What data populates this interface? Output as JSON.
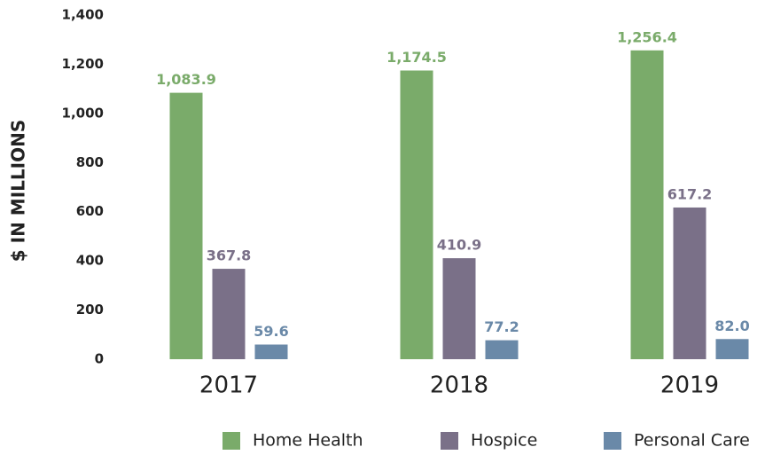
{
  "chart_data": {
    "type": "bar",
    "y_label": "$ IN MILLIONS",
    "categories": [
      "2017",
      "2018",
      "2019"
    ],
    "series": [
      {
        "name": "Home Health",
        "color": "#7aab6a",
        "values": [
          1083.9,
          1174.5,
          1256.4
        ],
        "value_labels": [
          "1,083.9",
          "1,174.5",
          "1,256.4"
        ]
      },
      {
        "name": "Hospice",
        "color": "#7a7088",
        "values": [
          367.8,
          410.9,
          617.2
        ],
        "value_labels": [
          "367.8",
          "410.9",
          "617.2"
        ]
      },
      {
        "name": "Personal Care",
        "color": "#6a89a8",
        "values": [
          59.6,
          77.2,
          82.0
        ],
        "value_labels": [
          "59.6",
          "77.2",
          "82.0"
        ]
      }
    ],
    "ylim": [
      0,
      1400
    ],
    "yticks": [
      0,
      200,
      400,
      600,
      800,
      {
        "value": 1000,
        "label": "1,000"
      },
      {
        "value": 1200,
        "label": "1,200"
      },
      {
        "value": 1400,
        "label": "1,400"
      }
    ],
    "grid": false,
    "legend": "bottom"
  }
}
